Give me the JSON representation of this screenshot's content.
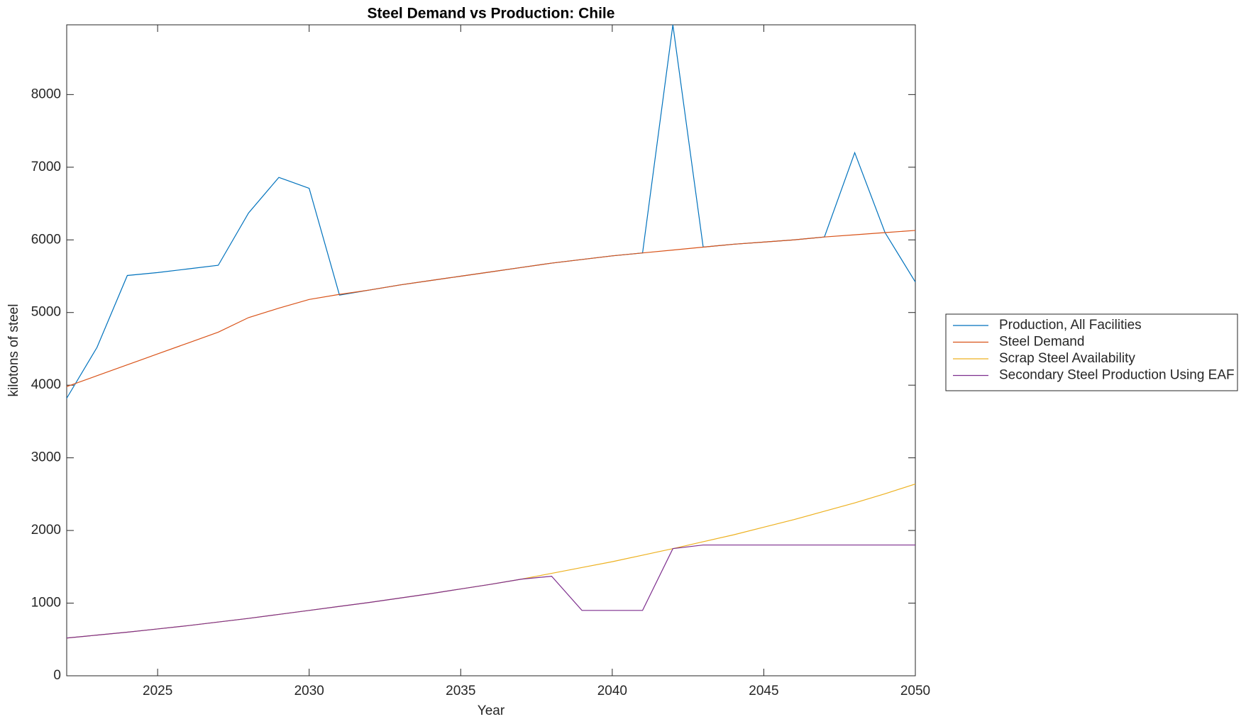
{
  "chart_data": {
    "type": "line",
    "title": "Steel Demand vs Production: Chile",
    "x_label": "Year",
    "y_label": "kilotons of steel",
    "x": [
      2022,
      2023,
      2024,
      2025,
      2026,
      2027,
      2028,
      2029,
      2030,
      2031,
      2032,
      2033,
      2034,
      2035,
      2036,
      2037,
      2038,
      2039,
      2040,
      2041,
      2042,
      2043,
      2044,
      2045,
      2046,
      2047,
      2048,
      2049,
      2050
    ],
    "series": [
      {
        "name": "Production, All Facilities",
        "color": "#0072bd",
        "values": [
          3820,
          4520,
          5510,
          5550,
          5600,
          5650,
          6370,
          6860,
          6710,
          5240,
          5310,
          5380,
          5440,
          5500,
          5560,
          5620,
          5680,
          5730,
          5780,
          5820,
          8960,
          5900,
          5940,
          5970,
          6000,
          6040,
          7200,
          6100,
          5420
        ]
      },
      {
        "name": "Steel Demand",
        "color": "#d95319",
        "values": [
          3980,
          4130,
          4280,
          4430,
          4580,
          4730,
          4930,
          5060,
          5180,
          5250,
          5310,
          5380,
          5440,
          5500,
          5560,
          5620,
          5680,
          5730,
          5780,
          5820,
          5860,
          5900,
          5940,
          5970,
          6000,
          6040,
          6070,
          6100,
          6130
        ]
      },
      {
        "name": "Scrap Steel Availability",
        "color": "#edb120",
        "values": [
          520,
          560,
          600,
          645,
          690,
          740,
          790,
          845,
          900,
          955,
          1010,
          1070,
          1130,
          1195,
          1260,
          1330,
          1410,
          1490,
          1570,
          1660,
          1750,
          1845,
          1940,
          2045,
          2150,
          2265,
          2380,
          2505,
          2640
        ]
      },
      {
        "name": "Secondary Steel Production Using EAF",
        "color": "#7e2f8e",
        "values": [
          520,
          560,
          600,
          645,
          690,
          740,
          790,
          845,
          900,
          955,
          1010,
          1070,
          1130,
          1195,
          1260,
          1330,
          1370,
          900,
          900,
          900,
          1750,
          1800,
          1800,
          1800,
          1800,
          1800,
          1800,
          1800,
          1800
        ]
      }
    ],
    "xlim": [
      2022,
      2050
    ],
    "xticks": [
      2025,
      2030,
      2035,
      2040,
      2045,
      2050
    ],
    "ylim": [
      0,
      8960
    ],
    "yticks": [
      0,
      1000,
      2000,
      3000,
      4000,
      5000,
      6000,
      7000,
      8000
    ],
    "grid": false,
    "legend": "outside-right"
  }
}
